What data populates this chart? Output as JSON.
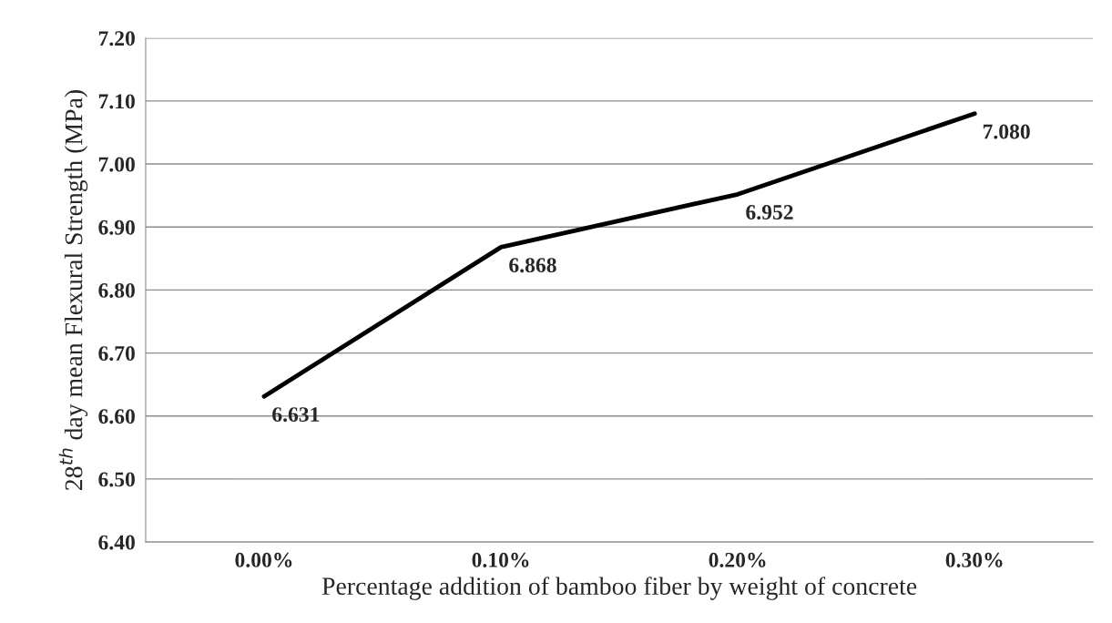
{
  "chart_data": {
    "type": "line",
    "categories": [
      "0.00%",
      "0.10%",
      "0.20%",
      "0.30%"
    ],
    "values": [
      6.631,
      6.868,
      6.952,
      7.08
    ],
    "color": "#000000",
    "value_labels": [
      "6.631",
      "6.868",
      "6.952",
      "7.080"
    ],
    "xlabel": "Percentage addition of bamboo fiber by weight of concrete",
    "ylabel": "28$^{th}$ day mean Flexural Strength (MPa)",
    "ylim": [
      6.4,
      7.2
    ],
    "yticks": [
      {
        "value": 6.4,
        "label": "6.40"
      },
      {
        "value": 6.5,
        "label": "6.50"
      },
      {
        "value": 6.6,
        "label": "6.60"
      },
      {
        "value": 6.7,
        "label": "6.70"
      },
      {
        "value": 6.8,
        "label": "6.80"
      },
      {
        "value": 6.9,
        "label": "6.90"
      },
      {
        "value": 7.0,
        "label": "7.00"
      },
      {
        "value": 7.1,
        "label": "7.10"
      },
      {
        "value": 7.2,
        "label": "7.20"
      }
    ],
    "grid": "y",
    "marker": "none",
    "line_style": "solid"
  }
}
